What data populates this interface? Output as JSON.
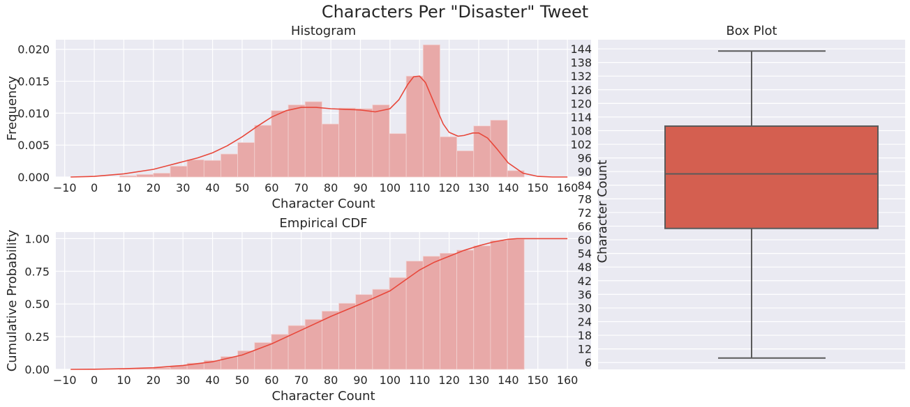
{
  "colors": {
    "background": "#eaeaf2",
    "grid": "#ffffff",
    "bar": "#e8a9a8",
    "line": "#e8473a",
    "box_fill": "#d45f50",
    "box_edge": "#5a5a5a"
  },
  "chart_data": [
    {
      "type": "bar",
      "title": "Characters Per \"Disaster\" Tweet",
      "subtitle": "Histogram",
      "xlabel": "Character Count",
      "ylabel": "Frequency",
      "xlim": [
        -13,
        168
      ],
      "ylim": [
        0,
        0.0215
      ],
      "xticks": [
        -10,
        0,
        10,
        20,
        30,
        40,
        50,
        60,
        70,
        80,
        90,
        100,
        110,
        120,
        130,
        140,
        150,
        160
      ],
      "yticks": [
        0.0,
        0.005,
        0.01,
        0.015,
        0.02
      ],
      "ytick_labels": [
        "0.000",
        "0.005",
        "0.010",
        "0.015",
        "0.020"
      ],
      "bin_width": 5.7,
      "bin_starts": [
        8.6,
        14.3,
        20.0,
        25.7,
        31.4,
        37.1,
        42.8,
        48.5,
        54.2,
        59.9,
        65.6,
        71.3,
        77.0,
        82.7,
        88.4,
        94.1,
        99.8,
        105.5,
        111.2,
        116.9,
        122.6,
        128.3,
        134.0,
        139.7
      ],
      "values": [
        0.0002,
        0.0004,
        0.0006,
        0.0017,
        0.0027,
        0.0026,
        0.0036,
        0.0054,
        0.0081,
        0.0104,
        0.0113,
        0.0118,
        0.0083,
        0.0108,
        0.0107,
        0.0113,
        0.0068,
        0.0158,
        0.0207,
        0.0063,
        0.0041,
        0.008,
        0.0089,
        0.001
      ],
      "kde": {
        "x": [
          -8,
          0,
          10,
          20,
          25,
          30,
          35,
          40,
          45,
          50,
          55,
          60,
          65,
          70,
          75,
          80,
          85,
          90,
          95,
          100,
          103,
          106,
          108,
          110,
          112,
          115,
          118,
          120,
          123,
          125,
          128,
          130,
          133,
          136,
          140,
          145,
          150,
          155,
          160
        ],
        "y": [
          0.0,
          0.0001,
          0.0005,
          0.0012,
          0.0018,
          0.0024,
          0.003,
          0.0038,
          0.0049,
          0.0063,
          0.0079,
          0.0094,
          0.0104,
          0.0109,
          0.0109,
          0.0107,
          0.0106,
          0.0105,
          0.0102,
          0.0107,
          0.0121,
          0.0145,
          0.0157,
          0.0158,
          0.0148,
          0.0115,
          0.0083,
          0.007,
          0.0064,
          0.0065,
          0.0069,
          0.0069,
          0.0061,
          0.0045,
          0.0022,
          0.0006,
          0.0001,
          0.0,
          0.0
        ]
      }
    },
    {
      "type": "bar",
      "subtitle": "Empirical CDF",
      "xlabel": "Character Count",
      "ylabel": "Cumulative Probability",
      "xlim": [
        -13,
        168
      ],
      "ylim": [
        0,
        1.05
      ],
      "xticks": [
        -10,
        0,
        10,
        20,
        30,
        40,
        50,
        60,
        70,
        80,
        90,
        100,
        110,
        120,
        130,
        140,
        150,
        160
      ],
      "yticks": [
        0.0,
        0.25,
        0.5,
        0.75,
        1.0
      ],
      "ytick_labels": [
        "0.00",
        "0.25",
        "0.50",
        "0.75",
        "1.00"
      ],
      "bin_width": 5.7,
      "bin_starts": [
        8.6,
        14.3,
        20.0,
        25.7,
        31.4,
        37.1,
        42.8,
        48.5,
        54.2,
        59.9,
        65.6,
        71.3,
        77.0,
        82.7,
        88.4,
        94.1,
        99.8,
        105.5,
        111.2,
        116.9,
        122.6,
        128.3,
        134.0,
        139.7
      ],
      "values": [
        0.003,
        0.006,
        0.012,
        0.028,
        0.048,
        0.068,
        0.098,
        0.142,
        0.205,
        0.268,
        0.335,
        0.382,
        0.445,
        0.505,
        0.572,
        0.612,
        0.702,
        0.828,
        0.865,
        0.888,
        0.912,
        0.945,
        0.985,
        0.995
      ],
      "cdf": {
        "x": [
          -8,
          0,
          10,
          20,
          30,
          40,
          50,
          60,
          70,
          80,
          90,
          100,
          105,
          110,
          115,
          120,
          125,
          130,
          135,
          140,
          143,
          150,
          160
        ],
        "y": [
          0.0,
          0.001,
          0.005,
          0.012,
          0.03,
          0.058,
          0.11,
          0.195,
          0.3,
          0.405,
          0.5,
          0.6,
          0.68,
          0.76,
          0.82,
          0.865,
          0.91,
          0.945,
          0.975,
          0.995,
          1.0,
          1.0,
          1.0
        ]
      }
    },
    {
      "type": "box",
      "subtitle": "Box Plot",
      "ylabel": "Character Count",
      "ylim": [
        3,
        148
      ],
      "yticks": [
        6,
        12,
        18,
        24,
        30,
        36,
        42,
        48,
        54,
        60,
        66,
        72,
        78,
        84,
        90,
        96,
        102,
        108,
        114,
        120,
        126,
        132,
        138,
        144
      ],
      "min": 8,
      "q1": 65,
      "median": 89,
      "q3": 110,
      "max": 143
    }
  ]
}
